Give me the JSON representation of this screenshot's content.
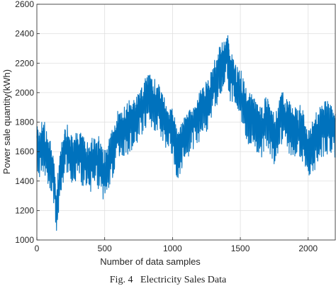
{
  "chart_data": {
    "type": "line",
    "xlabel": "Number of data samples",
    "ylabel": "Power sale quantity(kWh)",
    "xlim": [
      0,
      2200
    ],
    "ylim": [
      1000,
      2600
    ],
    "xticks": [
      0,
      500,
      1000,
      1500,
      2000
    ],
    "yticks": [
      1000,
      1200,
      1400,
      1600,
      1800,
      2000,
      2200,
      2400,
      2600
    ],
    "grid": true,
    "line_color": "#0072BD",
    "series": [
      {
        "anchors_x": [
          0,
          20,
          50,
          80,
          110,
          130,
          145,
          165,
          190,
          210,
          250,
          300,
          350,
          400,
          450,
          480,
          500,
          550,
          600,
          650,
          700,
          750,
          800,
          820,
          850,
          900,
          950,
          1000,
          1030,
          1060,
          1100,
          1150,
          1200,
          1250,
          1300,
          1350,
          1380,
          1400,
          1420,
          1450,
          1500,
          1550,
          1600,
          1650,
          1700,
          1750,
          1800,
          1850,
          1900,
          1950,
          2000,
          2050,
          2100,
          2150,
          2200
        ],
        "anchors_y": [
          1640,
          1600,
          1660,
          1560,
          1500,
          1380,
          1180,
          1420,
          1560,
          1640,
          1560,
          1600,
          1560,
          1520,
          1560,
          1500,
          1460,
          1580,
          1720,
          1760,
          1800,
          1880,
          1960,
          2000,
          1940,
          1920,
          1800,
          1760,
          1600,
          1640,
          1720,
          1800,
          1880,
          1940,
          2020,
          2180,
          2200,
          2280,
          2160,
          2100,
          2000,
          1860,
          1820,
          1760,
          1820,
          1700,
          1860,
          1800,
          1760,
          1740,
          1620,
          1680,
          1760,
          1780,
          1740
        ],
        "noise_amplitude": 130,
        "n_samples": 2200
      }
    ]
  },
  "caption": "Fig. 4   Electricity Sales Data"
}
